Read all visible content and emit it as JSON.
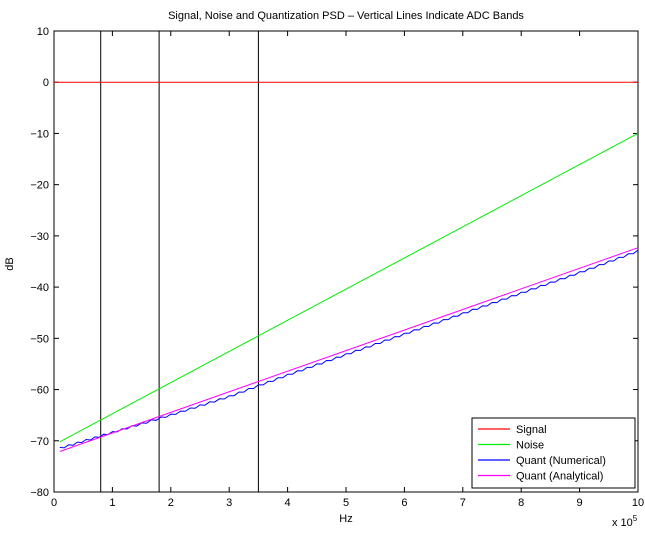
{
  "chart_data": {
    "type": "line",
    "title": "Signal, Noise and Quantization PSD – Vertical Lines Indicate ADC Bands",
    "xlabel": "Hz",
    "ylabel": "dB",
    "x_multiplier_label": "x 10",
    "x_multiplier_exponent": "5",
    "xlim": [
      0,
      10
    ],
    "ylim": [
      -80,
      10
    ],
    "xticks": [
      0,
      1,
      2,
      3,
      4,
      5,
      6,
      7,
      8,
      9,
      10
    ],
    "yticks": [
      10,
      0,
      -10,
      -20,
      -30,
      -40,
      -50,
      -60,
      -70,
      -80
    ],
    "vertical_lines_x": [
      0.8,
      1.8,
      3.5
    ],
    "grid": false,
    "legend_position": "bottom-right",
    "series": [
      {
        "name": "Signal",
        "color": "#ff0000",
        "x": [
          0,
          10
        ],
        "y": [
          0,
          0
        ]
      },
      {
        "name": "Noise",
        "color": "#00ee00",
        "x": [
          0.1,
          10
        ],
        "y": [
          -70.2,
          -10
        ]
      },
      {
        "name": "Quant (Numerical)",
        "color": "#0000ff",
        "x": [
          0.1,
          1,
          2,
          3,
          4,
          5,
          6,
          7,
          8,
          9,
          10
        ],
        "y": [
          -71.3,
          -68.2,
          -64.8,
          -61.2,
          -57.0,
          -53.0,
          -49.0,
          -45.0,
          -41.0,
          -37.0,
          -32.8
        ],
        "wobble": true
      },
      {
        "name": "Quant (Analytical)",
        "color": "#ff00ff",
        "x": [
          0.1,
          10
        ],
        "y": [
          -72.1,
          -32.3
        ]
      }
    ]
  }
}
